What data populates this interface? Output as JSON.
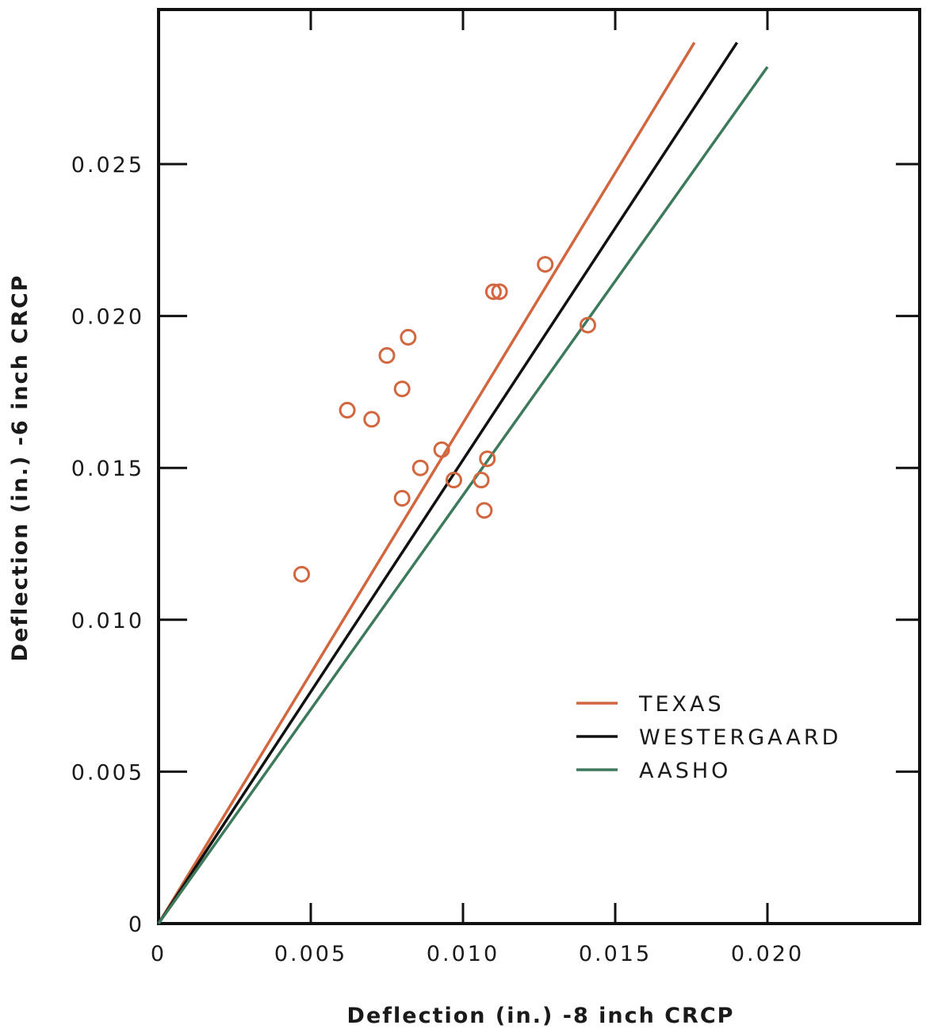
{
  "chart_data": {
    "type": "scatter",
    "title": "",
    "xlabel": "Deflection (in.) -8 inch CRCP",
    "ylabel": "Deflection (in.) -6 inch CRCP",
    "xlim": [
      0,
      0.025
    ],
    "ylim": [
      0,
      0.0295
    ],
    "x_ticks": [
      0,
      0.005,
      0.01,
      0.015,
      0.02
    ],
    "x_tick_labels": [
      "0",
      "0.005",
      "0.010",
      "0.015",
      "0.020"
    ],
    "y_ticks": [
      0,
      0.005,
      0.01,
      0.015,
      0.02,
      0.025
    ],
    "y_tick_labels": [
      "0",
      "0.005",
      "0.010",
      "0.015",
      "0.020",
      "0.025"
    ],
    "grid": false,
    "legend_position": "bottom-right",
    "points": {
      "marker": "open-circle",
      "color": "#d2663e",
      "x": [
        0.0047,
        0.0062,
        0.007,
        0.0075,
        0.008,
        0.008,
        0.0082,
        0.0086,
        0.0093,
        0.0097,
        0.0106,
        0.0107,
        0.0108,
        0.011,
        0.0112,
        0.0127,
        0.0141
      ],
      "y": [
        0.0115,
        0.0169,
        0.0166,
        0.0187,
        0.0176,
        0.014,
        0.0193,
        0.015,
        0.0156,
        0.0146,
        0.0146,
        0.0136,
        0.0153,
        0.0208,
        0.0208,
        0.0217,
        0.0197
      ]
    },
    "series": [
      {
        "name": "TEXAS",
        "color": "#d2663e",
        "x": [
          0,
          0.0176
        ],
        "y": [
          0,
          0.029
        ]
      },
      {
        "name": "WESTERGAARD",
        "color": "#111111",
        "x": [
          0,
          0.019
        ],
        "y": [
          0,
          0.029
        ]
      },
      {
        "name": "AASHO",
        "color": "#3d7a5c",
        "x": [
          0,
          0.02
        ],
        "y": [
          0,
          0.0282
        ]
      }
    ]
  }
}
